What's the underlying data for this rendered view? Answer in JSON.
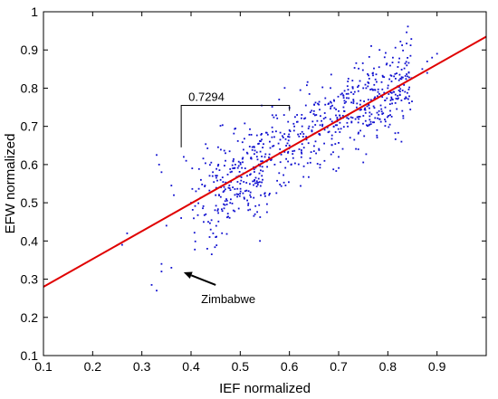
{
  "chart_data": {
    "type": "scatter",
    "title": "",
    "xlabel": "IEF normalized",
    "ylabel": "EFW normalized",
    "xlim": [
      0.1,
      1.0
    ],
    "ylim": [
      0.1,
      1.0
    ],
    "xticks": [
      "0.1",
      "0.2",
      "0.3",
      "0.4",
      "0.5",
      "0.6",
      "0.7",
      "0.8",
      "0.9"
    ],
    "yticks": [
      "0.1",
      "0.2",
      "0.3",
      "0.4",
      "0.5",
      "0.6",
      "0.7",
      "0.8",
      "0.9",
      "1"
    ],
    "grid": false,
    "legend": "none",
    "colors": {
      "points": "#1010d0",
      "fit_line": "#e00000",
      "frame": "#000000"
    },
    "fit_line": {
      "x": [
        0.1,
        1.0
      ],
      "y": [
        0.28,
        0.935
      ]
    },
    "annotations": {
      "bracket_label": "0.7294",
      "bracket_x": [
        0.38,
        0.6
      ],
      "bracket_y": [
        0.645,
        0.755
      ],
      "outlier_label": "Zimbabwe",
      "outlier_arrow_from": [
        0.45,
        0.285
      ],
      "outlier_arrow_to": [
        0.385,
        0.318
      ]
    },
    "points": [
      [
        0.33,
        0.625
      ],
      [
        0.335,
        0.6
      ],
      [
        0.34,
        0.58
      ],
      [
        0.36,
        0.545
      ],
      [
        0.365,
        0.52
      ],
      [
        0.385,
        0.62
      ],
      [
        0.39,
        0.61
      ],
      [
        0.4,
        0.5
      ],
      [
        0.41,
        0.53
      ],
      [
        0.42,
        0.56
      ],
      [
        0.43,
        0.47
      ],
      [
        0.435,
        0.45
      ],
      [
        0.44,
        0.43
      ],
      [
        0.445,
        0.42
      ],
      [
        0.45,
        0.41
      ],
      [
        0.45,
        0.52
      ],
      [
        0.46,
        0.56
      ],
      [
        0.47,
        0.61
      ],
      [
        0.48,
        0.58
      ],
      [
        0.49,
        0.6
      ],
      [
        0.5,
        0.55
      ],
      [
        0.51,
        0.59
      ],
      [
        0.52,
        0.52
      ],
      [
        0.53,
        0.47
      ],
      [
        0.54,
        0.4
      ],
      [
        0.55,
        0.62
      ],
      [
        0.56,
        0.66
      ],
      [
        0.57,
        0.6
      ],
      [
        0.58,
        0.63
      ],
      [
        0.59,
        0.68
      ],
      [
        0.6,
        0.65
      ],
      [
        0.61,
        0.7
      ],
      [
        0.62,
        0.64
      ],
      [
        0.63,
        0.72
      ],
      [
        0.64,
        0.7
      ],
      [
        0.65,
        0.74
      ],
      [
        0.66,
        0.68
      ],
      [
        0.67,
        0.72
      ],
      [
        0.68,
        0.76
      ],
      [
        0.69,
        0.7
      ],
      [
        0.7,
        0.74
      ],
      [
        0.71,
        0.78
      ],
      [
        0.72,
        0.72
      ],
      [
        0.73,
        0.77
      ],
      [
        0.74,
        0.71
      ],
      [
        0.75,
        0.8
      ],
      [
        0.76,
        0.76
      ],
      [
        0.77,
        0.84
      ],
      [
        0.78,
        0.79
      ],
      [
        0.79,
        0.83
      ],
      [
        0.8,
        0.8
      ],
      [
        0.81,
        0.77
      ],
      [
        0.82,
        0.78
      ],
      [
        0.74,
        0.64
      ],
      [
        0.7,
        0.62
      ],
      [
        0.87,
        0.85
      ],
      [
        0.88,
        0.84
      ],
      [
        0.88,
        0.87
      ],
      [
        0.89,
        0.88
      ],
      [
        0.9,
        0.89
      ],
      [
        0.32,
        0.285
      ],
      [
        0.33,
        0.27
      ],
      [
        0.34,
        0.32
      ],
      [
        0.34,
        0.34
      ],
      [
        0.36,
        0.33
      ],
      [
        0.27,
        0.42
      ],
      [
        0.26,
        0.39
      ],
      [
        0.35,
        0.44
      ],
      [
        0.38,
        0.46
      ],
      [
        0.6,
        0.69
      ]
    ],
    "cloud": [
      {
        "n": 520,
        "x": [
          0.45,
          0.85
        ],
        "slope": 0.7294,
        "intercept": 0.21,
        "spread": 0.06
      },
      {
        "n": 120,
        "x": [
          0.4,
          0.55
        ],
        "slope": 0.7294,
        "intercept": 0.19,
        "spread": 0.07
      },
      {
        "n": 60,
        "x": [
          0.72,
          0.84
        ],
        "slope": 0.7294,
        "intercept": 0.23,
        "spread": 0.04
      }
    ]
  }
}
